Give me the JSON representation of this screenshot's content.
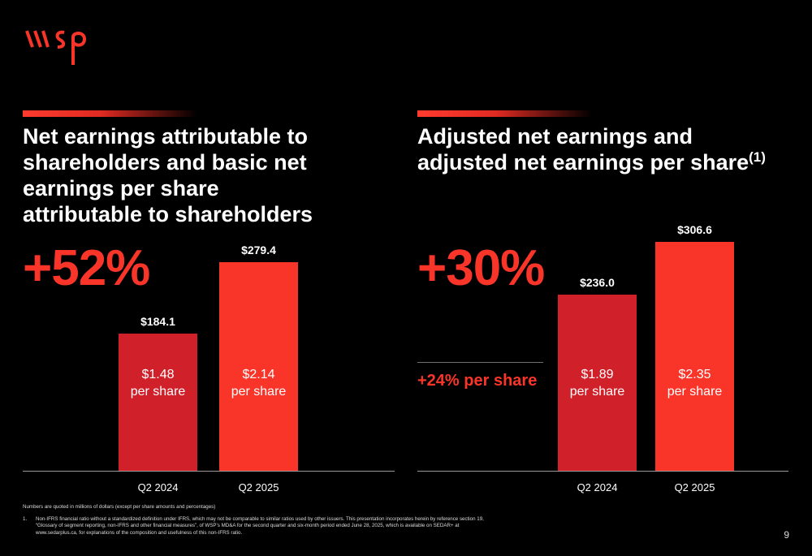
{
  "brand": {
    "logo_text": "wsp",
    "color_red": "#f9352a",
    "color_dark_red": "#d0202a"
  },
  "left_panel": {
    "title": "Net earnings attributable to shareholders and basic net earnings per share attributable to shareholders",
    "growth": "+52%"
  },
  "right_panel": {
    "title": "Adjusted net earnings and adjusted net earnings per share",
    "title_ref": "(1)",
    "growth": "+30%",
    "per_share_growth": "+24% per share"
  },
  "chart_data": [
    {
      "type": "bar",
      "categories": [
        "Q2 2024",
        "Q2 2025"
      ],
      "values": [
        184.1,
        279.4
      ],
      "value_labels": [
        "$184.1",
        "$279.4"
      ],
      "per_share_values": [
        "$1.48",
        "$2.14"
      ],
      "per_share_unit": "per share",
      "colors": [
        "#d0202a",
        "#f9352a"
      ],
      "title": "",
      "xlabel": "",
      "ylabel": ""
    },
    {
      "type": "bar",
      "categories": [
        "Q2 2024",
        "Q2 2025"
      ],
      "values": [
        236.0,
        306.6
      ],
      "value_labels": [
        "$236.0",
        "$306.6"
      ],
      "per_share_values": [
        "$1.89",
        "$2.35"
      ],
      "per_share_unit": "per share",
      "colors": [
        "#d0202a",
        "#f9352a"
      ],
      "title": "",
      "xlabel": "",
      "ylabel": ""
    }
  ],
  "footnotes": {
    "units_note": "Numbers are quoted in millions of dollars (except per share amounts and percentages)",
    "note_1_number": "1.",
    "note_1_line1": "Non-IFRS financial ratio without a standardized definition under IFRS, which may not be comparable to similar ratios used by other issuers. This presentation incorporates herein by reference section 19,",
    "note_1_line2": "“Glossary of segment reporting, non-IFRS and other financial measures”, of WSP’s MD&A for the second quarter and six-month period ended June 28, 2025, which is available on SEDAR+ at",
    "note_1_line3": "www.sedarplus.ca, for explanations of the composition and usefulness of this non-IFRS ratio."
  },
  "page_number": "9"
}
